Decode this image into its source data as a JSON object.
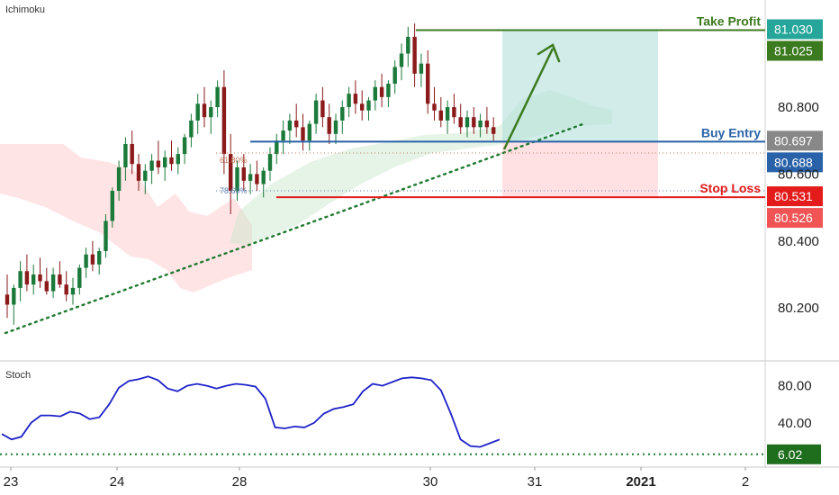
{
  "panel_label": "Ichimoku",
  "stoch_label": "Stoch",
  "colors": {
    "up": "#26a69a",
    "down": "#880e1f",
    "upBody": "#1b7a3a",
    "downBody": "#8b1a1a",
    "take_profit": "#3b7a1e",
    "buy_entry": "#2962a8",
    "stop_loss": "#e31b1b",
    "trendline": "#1e7a30",
    "cloud_green": "#c8e6c9",
    "cloud_red": "#ffcdd2",
    "target_box": "#b2dfdb",
    "stop_box": "#ffcdd2",
    "stoch_line": "#1e22c8",
    "fib_618": "#c07a5a",
    "fib_786": "#5a7ab0"
  },
  "chart_data": [
    {
      "type": "candlestick",
      "title": "Ichimoku",
      "x_ticks": [
        "23",
        "24",
        "28",
        "30",
        "31",
        "2021",
        "2"
      ],
      "y_ticks": [
        "80.800",
        "80.600",
        "80.400",
        "80.200"
      ],
      "ylim": [
        80.05,
        81.12
      ],
      "levels": [
        {
          "name": "Take Profit",
          "value": 81.03,
          "price_label": "81.030",
          "second_label": "81.025"
        },
        {
          "name": "Buy Entry",
          "value": 80.697,
          "price_label": "80.697",
          "second_label": "80.688"
        },
        {
          "name": "Stop Loss",
          "value": 80.531,
          "price_label": "80.531",
          "second_label": "80.526"
        }
      ],
      "fib_labels": [
        "61.80%",
        "78.60%"
      ],
      "candles": [
        [
          80.24,
          80.3,
          80.17,
          80.21
        ],
        [
          80.21,
          80.27,
          80.15,
          80.26
        ],
        [
          80.26,
          80.34,
          80.22,
          80.31
        ],
        [
          80.31,
          80.36,
          80.25,
          80.27
        ],
        [
          80.27,
          80.33,
          80.24,
          80.3
        ],
        [
          80.3,
          80.35,
          80.26,
          80.28
        ],
        [
          80.28,
          80.32,
          80.24,
          80.25
        ],
        [
          80.25,
          80.32,
          80.23,
          80.3
        ],
        [
          80.3,
          80.34,
          80.26,
          80.27
        ],
        [
          80.27,
          80.31,
          80.22,
          80.24
        ],
        [
          80.24,
          80.29,
          80.21,
          80.26
        ],
        [
          80.26,
          80.33,
          80.24,
          80.32
        ],
        [
          80.32,
          80.38,
          80.29,
          80.36
        ],
        [
          80.36,
          80.4,
          80.31,
          80.33
        ],
        [
          80.33,
          80.38,
          80.3,
          80.37
        ],
        [
          80.37,
          80.48,
          80.35,
          80.46
        ],
        [
          80.46,
          80.56,
          80.44,
          80.55
        ],
        [
          80.55,
          80.64,
          80.52,
          80.62
        ],
        [
          80.62,
          80.71,
          80.58,
          80.69
        ],
        [
          80.69,
          80.73,
          80.6,
          80.63
        ],
        [
          80.63,
          80.66,
          80.55,
          80.58
        ],
        [
          80.58,
          80.63,
          80.54,
          80.61
        ],
        [
          80.61,
          80.66,
          80.57,
          80.64
        ],
        [
          80.64,
          80.7,
          80.6,
          80.62
        ],
        [
          80.62,
          80.67,
          80.58,
          80.65
        ],
        [
          80.65,
          80.7,
          80.61,
          80.63
        ],
        [
          80.63,
          80.68,
          80.6,
          80.66
        ],
        [
          80.66,
          80.72,
          80.63,
          80.71
        ],
        [
          80.71,
          80.78,
          80.68,
          80.76
        ],
        [
          80.76,
          80.84,
          80.72,
          80.81
        ],
        [
          80.81,
          80.86,
          80.74,
          80.77
        ],
        [
          80.77,
          80.82,
          80.72,
          80.8
        ],
        [
          80.8,
          80.88,
          80.77,
          80.86
        ],
        [
          80.86,
          80.91,
          80.6,
          80.66
        ],
        [
          80.66,
          80.72,
          80.48,
          80.55
        ],
        [
          80.55,
          80.64,
          80.52,
          80.62
        ],
        [
          80.62,
          80.66,
          80.55,
          80.58
        ],
        [
          80.58,
          80.63,
          80.54,
          80.6
        ],
        [
          80.6,
          80.64,
          80.55,
          80.57
        ],
        [
          80.57,
          80.62,
          80.53,
          80.61
        ],
        [
          80.61,
          80.68,
          80.58,
          80.66
        ],
        [
          80.66,
          80.72,
          80.63,
          80.7
        ],
        [
          80.7,
          80.76,
          80.66,
          80.73
        ],
        [
          80.73,
          80.78,
          80.69,
          80.76
        ],
        [
          80.76,
          80.81,
          80.71,
          80.74
        ],
        [
          80.74,
          80.78,
          80.67,
          80.7
        ],
        [
          80.7,
          80.76,
          80.67,
          80.75
        ],
        [
          80.75,
          80.84,
          80.72,
          80.82
        ],
        [
          80.82,
          80.86,
          80.74,
          80.77
        ],
        [
          80.77,
          80.81,
          80.69,
          80.72
        ],
        [
          80.72,
          80.78,
          80.69,
          80.76
        ],
        [
          80.76,
          80.82,
          80.72,
          80.8
        ],
        [
          80.8,
          80.86,
          80.77,
          80.84
        ],
        [
          80.84,
          80.88,
          80.78,
          80.81
        ],
        [
          80.81,
          80.85,
          80.76,
          80.79
        ],
        [
          80.79,
          80.83,
          80.76,
          80.82
        ],
        [
          80.82,
          80.88,
          80.79,
          80.86
        ],
        [
          80.86,
          80.9,
          80.8,
          80.83
        ],
        [
          80.83,
          80.88,
          80.8,
          80.87
        ],
        [
          80.87,
          80.94,
          80.84,
          80.92
        ],
        [
          80.92,
          80.99,
          80.88,
          80.96
        ],
        [
          80.96,
          81.04,
          80.92,
          81.01
        ],
        [
          81.01,
          81.05,
          80.86,
          80.9
        ],
        [
          80.9,
          80.96,
          80.86,
          80.93
        ],
        [
          80.93,
          80.97,
          80.78,
          80.81
        ],
        [
          80.81,
          80.86,
          80.76,
          80.79
        ],
        [
          80.79,
          80.83,
          80.74,
          80.76
        ],
        [
          80.76,
          80.82,
          80.72,
          80.8
        ],
        [
          80.8,
          80.84,
          80.75,
          80.77
        ],
        [
          80.77,
          80.81,
          80.72,
          80.74
        ],
        [
          80.74,
          80.79,
          80.71,
          80.77
        ],
        [
          80.77,
          80.8,
          80.72,
          80.74
        ],
        [
          80.74,
          80.78,
          80.71,
          80.76
        ],
        [
          80.76,
          80.8,
          80.72,
          80.74
        ],
        [
          80.74,
          80.77,
          80.7,
          80.72
        ]
      ]
    },
    {
      "type": "line",
      "title": "Stoch",
      "y_ticks": [
        "80.00",
        "40.00"
      ],
      "ylim": [
        0,
        100
      ],
      "oversold_level": 6.02,
      "level_label": "6.02",
      "values": [
        28,
        22,
        25,
        40,
        48,
        48,
        47,
        52,
        50,
        44,
        46,
        60,
        78,
        85,
        87,
        90,
        86,
        77,
        74,
        80,
        82,
        80,
        77,
        80,
        82,
        81,
        79,
        66,
        35,
        34,
        36,
        35,
        40,
        50,
        55,
        57,
        60,
        74,
        82,
        80,
        84,
        88,
        89,
        88,
        86,
        75,
        50,
        22,
        15,
        14,
        18,
        22
      ]
    }
  ]
}
